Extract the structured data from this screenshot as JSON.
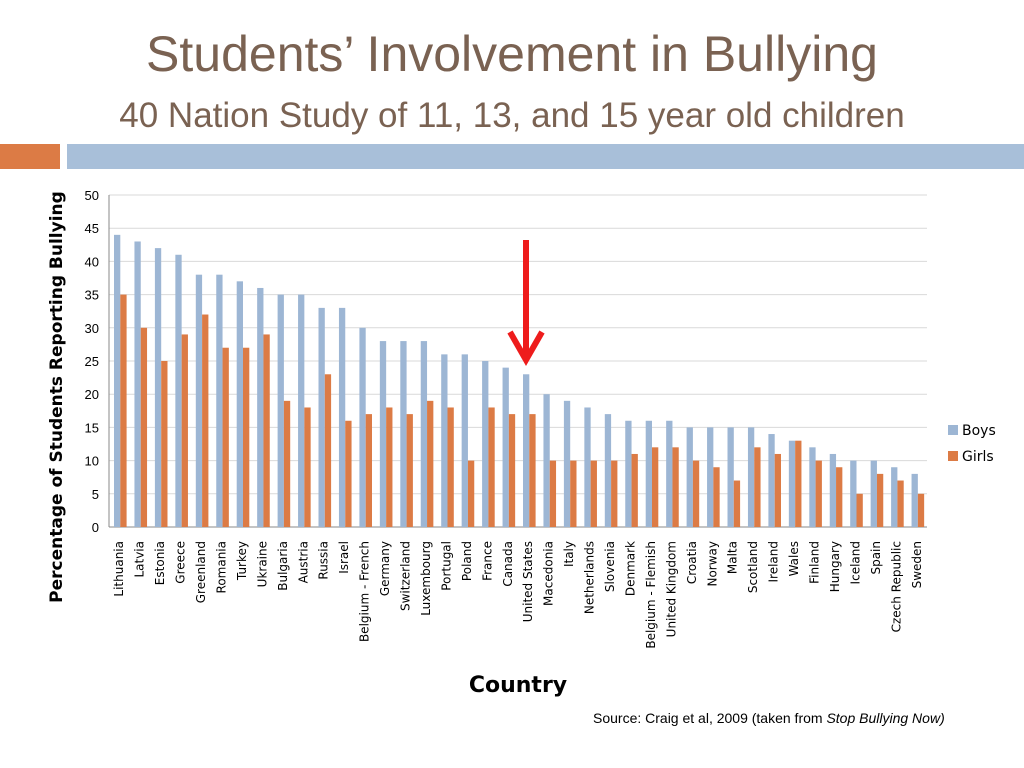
{
  "slide": {
    "title": "Students’ Involvement in Bullying",
    "subtitle": "40 Nation Study of 11, 13, and 15 year old children",
    "source_prefix": "Source: Craig et al, 2009 (taken from ",
    "source_italic": "Stop Bullying Now)"
  },
  "colors": {
    "title": "#7a6252",
    "accent_orange": "#dc7b45",
    "accent_blue": "#a8bfd9",
    "boys": "#9db6d4",
    "girls": "#dc7b45",
    "arrow": "#ee1c1c"
  },
  "chart_data": {
    "type": "bar",
    "xlabel": "Country",
    "ylabel": "Percentage of  Students Reporting Bullying",
    "ylim": [
      0,
      50
    ],
    "yticks": [
      0,
      5,
      10,
      15,
      20,
      25,
      30,
      35,
      40,
      45,
      50
    ],
    "grid": true,
    "legend_position": "right",
    "highlight": {
      "category": "United States",
      "marker": "down-arrow"
    },
    "categories": [
      "Lithuania",
      "Latvia",
      "Estonia",
      "Greece",
      "Greenland",
      "Romania",
      "Turkey",
      "Ukraine",
      "Bulgaria",
      "Austria",
      "Russia",
      "Israel",
      "Belgium - French",
      "Germany",
      "Switzerland",
      "Luxembourg",
      "Portugal",
      "Poland",
      "France",
      "Canada",
      "United States",
      "Macedonia",
      "Italy",
      "Netherlands",
      "Slovenia",
      "Denmark",
      "Belgium - Flemish",
      "United Kingdom",
      "Croatia",
      "Norway",
      "Malta",
      "Scotland",
      "Ireland",
      "Wales",
      "Finland",
      "Hungary",
      "Iceland",
      "Spain",
      "Czech Republic",
      "Sweden"
    ],
    "series": [
      {
        "name": "Boys",
        "values": [
          44,
          43,
          42,
          41,
          38,
          38,
          37,
          36,
          35,
          35,
          33,
          33,
          30,
          28,
          28,
          28,
          26,
          26,
          25,
          24,
          23,
          20,
          19,
          18,
          17,
          16,
          16,
          16,
          15,
          15,
          15,
          15,
          14,
          13,
          12,
          11,
          10,
          10,
          9,
          8
        ]
      },
      {
        "name": "Girls",
        "values": [
          35,
          30,
          25,
          29,
          32,
          27,
          27,
          29,
          19,
          18,
          23,
          16,
          17,
          18,
          17,
          19,
          18,
          10,
          18,
          17,
          17,
          10,
          10,
          10,
          10,
          11,
          12,
          12,
          10,
          9,
          7,
          12,
          11,
          13,
          10,
          9,
          5,
          8,
          7,
          5
        ]
      }
    ]
  }
}
